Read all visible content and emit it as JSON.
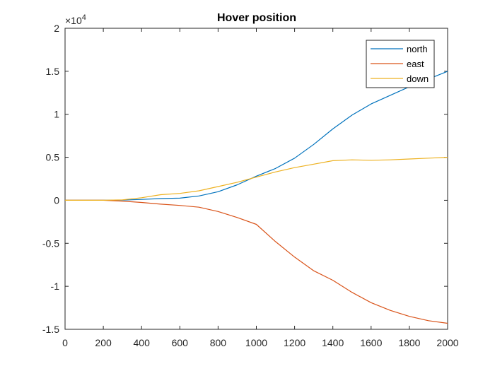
{
  "chart_data": {
    "type": "line",
    "title": "Hover position",
    "xlabel": "",
    "ylabel": "",
    "xlim": [
      0,
      2000
    ],
    "ylim": [
      -15000,
      20000
    ],
    "x_ticks": [
      0,
      200,
      400,
      600,
      800,
      1000,
      1200,
      1400,
      1600,
      1800,
      2000
    ],
    "y_ticks": [
      -15000,
      -10000,
      -5000,
      0,
      5000,
      10000,
      15000,
      20000
    ],
    "y_tick_labels": [
      "-1.5",
      "-1",
      "-0.5",
      "0",
      "0.5",
      "1",
      "1.5",
      "2"
    ],
    "y_exponent_prefix": "×10",
    "y_exponent_power": "4",
    "grid": false,
    "legend_position": "top-right",
    "series": [
      {
        "name": "north",
        "color": "#0072BD",
        "x": [
          0,
          100,
          200,
          300,
          400,
          500,
          600,
          700,
          800,
          900,
          1000,
          1100,
          1200,
          1300,
          1400,
          1500,
          1600,
          1700,
          1800,
          1900,
          2000
        ],
        "y": [
          0,
          0,
          0,
          20,
          100,
          200,
          250,
          500,
          1000,
          1800,
          2800,
          3700,
          4900,
          6500,
          8300,
          9900,
          11200,
          12200,
          13200,
          14100,
          15000
        ]
      },
      {
        "name": "east",
        "color": "#D95319",
        "x": [
          0,
          100,
          200,
          300,
          400,
          500,
          600,
          700,
          800,
          900,
          1000,
          1100,
          1200,
          1300,
          1400,
          1500,
          1600,
          1700,
          1800,
          1900,
          2000
        ],
        "y": [
          0,
          0,
          0,
          -100,
          -250,
          -450,
          -600,
          -800,
          -1300,
          -2000,
          -2800,
          -4800,
          -6600,
          -8200,
          -9300,
          -10700,
          -11900,
          -12800,
          -13500,
          -14000,
          -14300
        ]
      },
      {
        "name": "down",
        "color": "#EDB120",
        "x": [
          0,
          100,
          200,
          300,
          400,
          500,
          600,
          700,
          800,
          900,
          1000,
          1100,
          1200,
          1300,
          1400,
          1500,
          1600,
          1700,
          1800,
          1900,
          2000
        ],
        "y": [
          0,
          0,
          0,
          50,
          300,
          650,
          800,
          1100,
          1600,
          2100,
          2700,
          3300,
          3800,
          4200,
          4600,
          4700,
          4650,
          4700,
          4800,
          4900,
          5000
        ]
      }
    ]
  }
}
